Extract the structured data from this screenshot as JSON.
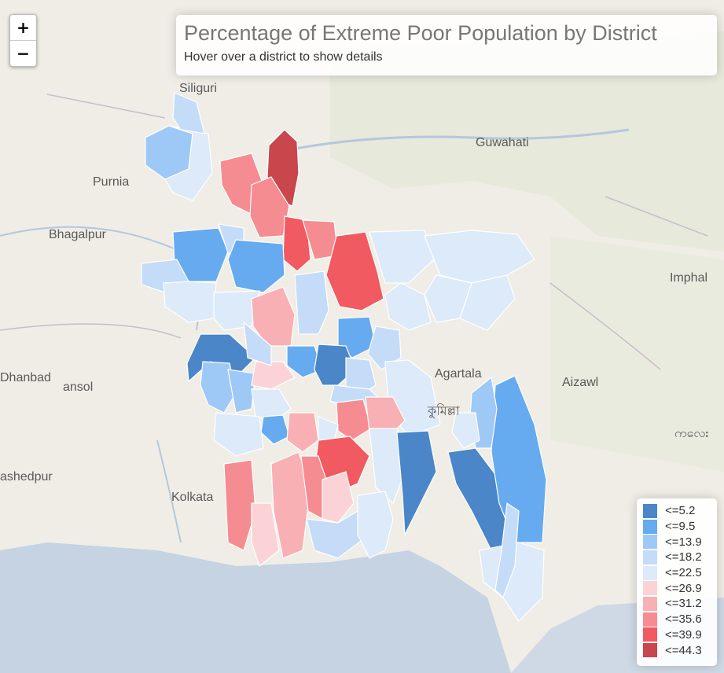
{
  "title": "Percentage of Extreme Poor Population by District",
  "subtitle": "Hover over a district to show details",
  "zoom": {
    "in_label": "+",
    "out_label": "−"
  },
  "cities": [
    "Siliguri",
    "Guwahati",
    "Purnia",
    "Bhagalpur",
    "Imphal",
    "Agartala",
    "Aizawl",
    "Dhanbad",
    "ansol",
    "কুমিল্লা",
    "ashedpur",
    "Kolkata",
    "ကလေး"
  ],
  "legend": [
    {
      "label": "<=5.2",
      "color": "#4a86c8"
    },
    {
      "label": "<=9.5",
      "color": "#66aaf0"
    },
    {
      "label": "<=13.9",
      "color": "#9ec9f6"
    },
    {
      "label": "<=18.2",
      "color": "#c4dcf8"
    },
    {
      "label": "<=22.5",
      "color": "#dceaf9"
    },
    {
      "label": "<=26.9",
      "color": "#fbd3d6"
    },
    {
      "label": "<=31.2",
      "color": "#f8b0b4"
    },
    {
      "label": "<=35.6",
      "color": "#f58c91"
    },
    {
      "label": "<=39.9",
      "color": "#f05a60"
    },
    {
      "label": "<=44.3",
      "color": "#c8464c"
    }
  ]
}
